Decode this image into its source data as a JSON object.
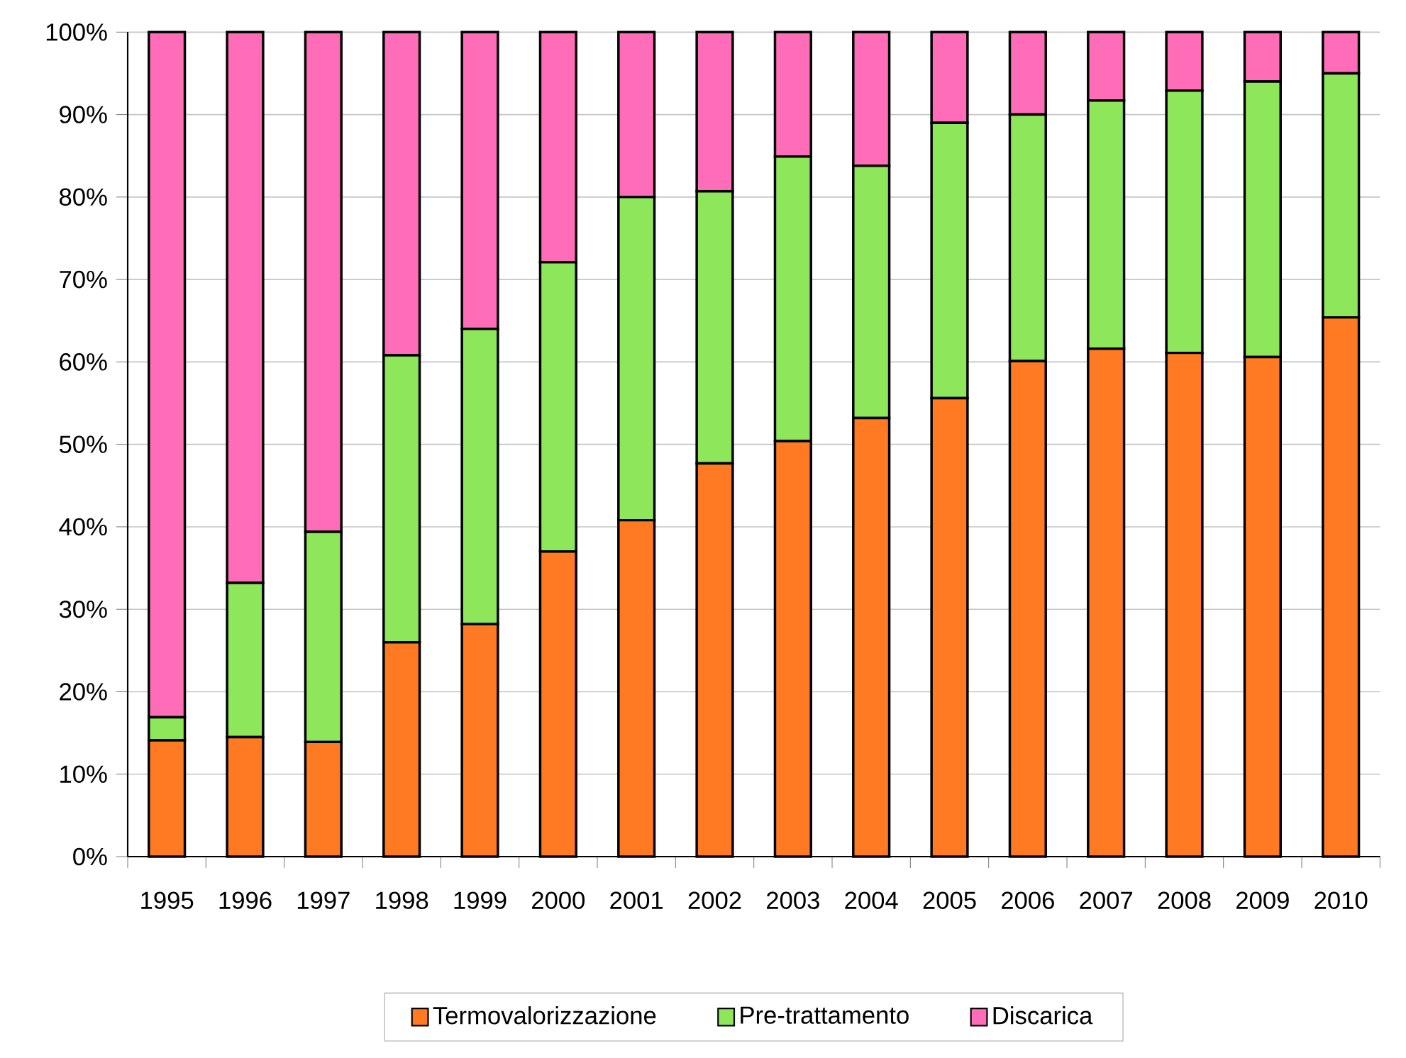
{
  "chart_data": {
    "type": "bar",
    "stacked": true,
    "categories": [
      "1995",
      "1996",
      "1997",
      "1998",
      "1999",
      "2000",
      "2001",
      "2002",
      "2003",
      "2004",
      "2005",
      "2006",
      "2007",
      "2008",
      "2009",
      "2010"
    ],
    "series": [
      {
        "name": "Termovalorizzazione",
        "color": "#ff7a22",
        "values": [
          14.1,
          14.5,
          13.9,
          26.0,
          28.2,
          37.0,
          40.8,
          47.7,
          50.4,
          53.2,
          55.6,
          60.1,
          61.6,
          61.1,
          60.6,
          65.4
        ]
      },
      {
        "name": "Pre-trattamento",
        "color": "#8ee65a",
        "values": [
          2.8,
          18.7,
          25.5,
          34.8,
          35.8,
          35.1,
          39.2,
          33.0,
          34.5,
          30.6,
          33.4,
          29.9,
          30.1,
          31.8,
          33.4,
          29.6
        ]
      },
      {
        "name": "Discarica",
        "color": "#ff6cb8",
        "values": [
          83.1,
          66.8,
          60.6,
          39.2,
          36.0,
          27.9,
          20.0,
          19.3,
          15.1,
          16.2,
          11.0,
          10.0,
          8.3,
          7.1,
          6.0,
          5.0
        ]
      }
    ],
    "ylim": [
      0,
      100
    ],
    "yticks": [
      {
        "value": 0,
        "label": "0%"
      },
      {
        "value": 10,
        "label": "10%"
      },
      {
        "value": 20,
        "label": "20%"
      },
      {
        "value": 30,
        "label": "30%"
      },
      {
        "value": 40,
        "label": "40%"
      },
      {
        "value": 50,
        "label": "50%"
      },
      {
        "value": 60,
        "label": "60%"
      },
      {
        "value": 70,
        "label": "70%"
      },
      {
        "value": 80,
        "label": "80%"
      },
      {
        "value": 90,
        "label": "90%"
      },
      {
        "value": 100,
        "label": "100%"
      }
    ],
    "grid": "y",
    "legend": "bottom"
  }
}
